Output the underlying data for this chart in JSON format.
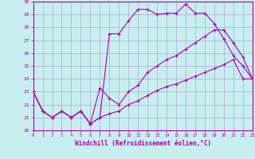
{
  "xlabel": "Windchill (Refroidissement éolien,°C)",
  "background_color": "#c8eef0",
  "line_color": "#aa00aa",
  "grid_color": "#aaaacc",
  "xmin": 0,
  "xmax": 23,
  "ymin": 20,
  "ymax": 30,
  "line1_x": [
    0,
    1,
    2,
    3,
    4,
    5,
    6,
    7,
    8,
    9,
    10,
    11,
    12,
    13,
    14,
    15,
    16,
    17,
    18,
    19,
    20,
    21,
    22,
    23
  ],
  "line1_y": [
    23,
    21.5,
    21.0,
    21.5,
    21.0,
    21.5,
    20.5,
    21.0,
    27.5,
    27.5,
    28.5,
    29.4,
    29.4,
    29.0,
    29.1,
    29.1,
    29.8,
    29.1,
    29.1,
    28.3,
    27.1,
    25.8,
    25.0,
    24.0
  ],
  "line2_x": [
    0,
    1,
    2,
    3,
    4,
    5,
    6,
    7,
    8,
    9,
    10,
    11,
    12,
    13,
    14,
    15,
    16,
    17,
    18,
    19,
    20,
    21,
    22,
    23
  ],
  "line2_y": [
    23,
    21.5,
    21.0,
    21.5,
    21.0,
    21.5,
    20.5,
    23.3,
    22.5,
    22.0,
    23.0,
    23.5,
    24.5,
    25.0,
    25.5,
    25.8,
    26.3,
    26.8,
    27.3,
    27.8,
    27.8,
    26.8,
    25.7,
    24.0
  ],
  "line3_x": [
    0,
    1,
    2,
    3,
    4,
    5,
    6,
    7,
    8,
    9,
    10,
    11,
    12,
    13,
    14,
    15,
    16,
    17,
    18,
    19,
    20,
    21,
    22,
    23
  ],
  "line3_y": [
    23,
    21.5,
    21.0,
    21.5,
    21.0,
    21.5,
    20.5,
    21.0,
    21.3,
    21.5,
    22.0,
    22.3,
    22.7,
    23.1,
    23.4,
    23.6,
    23.9,
    24.2,
    24.5,
    24.8,
    25.1,
    25.5,
    24.0,
    24.0
  ]
}
